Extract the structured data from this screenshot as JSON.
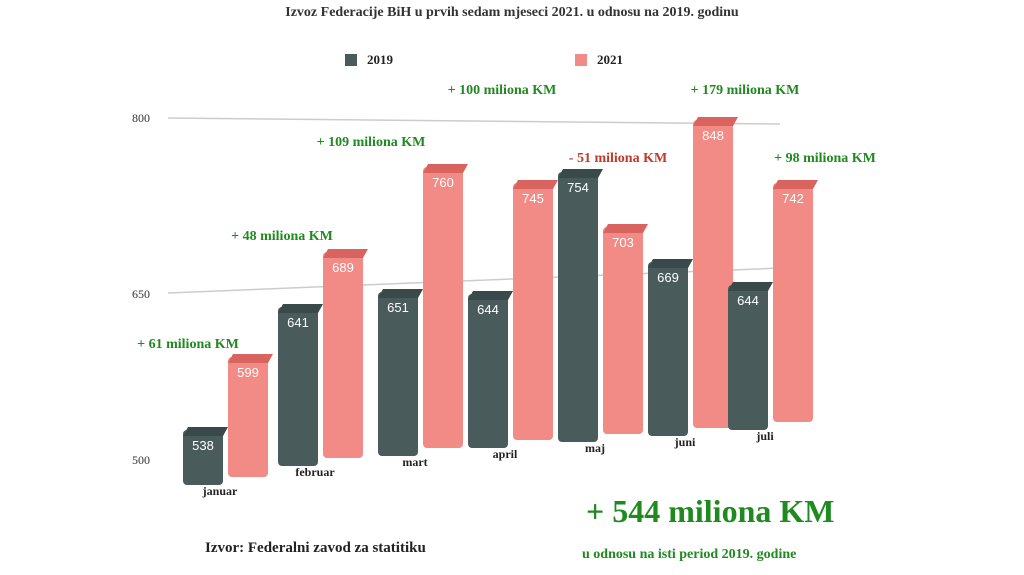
{
  "header": {
    "title": "Izvoz Federacije BiH u prvih sedam mjeseci 2021. u odnosu na 2019. godinu"
  },
  "colors": {
    "series_2019": "#4a5b5c",
    "series_2019_top": "#3a494a",
    "series_2021": "#f28b86",
    "series_2021_top": "#d9645f",
    "positive_diff": "#1f8a1f",
    "negative_diff": "#c0392b",
    "gridline": "#cccccc"
  },
  "chart_data": {
    "type": "bar",
    "title": "Izvoz Federacije BiH u prvih sedam mjeseci 2021. u odnosu na 2019. godinu",
    "categories": [
      "januar",
      "februar",
      "mart",
      "april",
      "maj",
      "juni",
      "juli"
    ],
    "series": [
      {
        "name": "2019",
        "values": [
          538,
          641,
          651,
          644,
          754,
          669,
          644
        ]
      },
      {
        "name": "2021",
        "values": [
          599,
          689,
          760,
          745,
          703,
          848,
          742
        ]
      }
    ],
    "differences": [
      "+ 61 miliona KM",
      "+ 48 miliona KM",
      "+ 109 miliona KM",
      "+ 100 miliona KM",
      "- 51 miliona KM",
      "+ 179 miliona KM",
      "+ 98 miliona KM"
    ],
    "yticks": [
      "500",
      "650",
      "800"
    ],
    "ylim": [
      500,
      800
    ],
    "legend_position": "top-center",
    "grid": true
  },
  "footer": {
    "source": "Izvor: Federalni zavod za statitiku",
    "total": "+ 544 miliona KM",
    "total_subtitle": "u odnosu na isti period 2019. godine"
  }
}
